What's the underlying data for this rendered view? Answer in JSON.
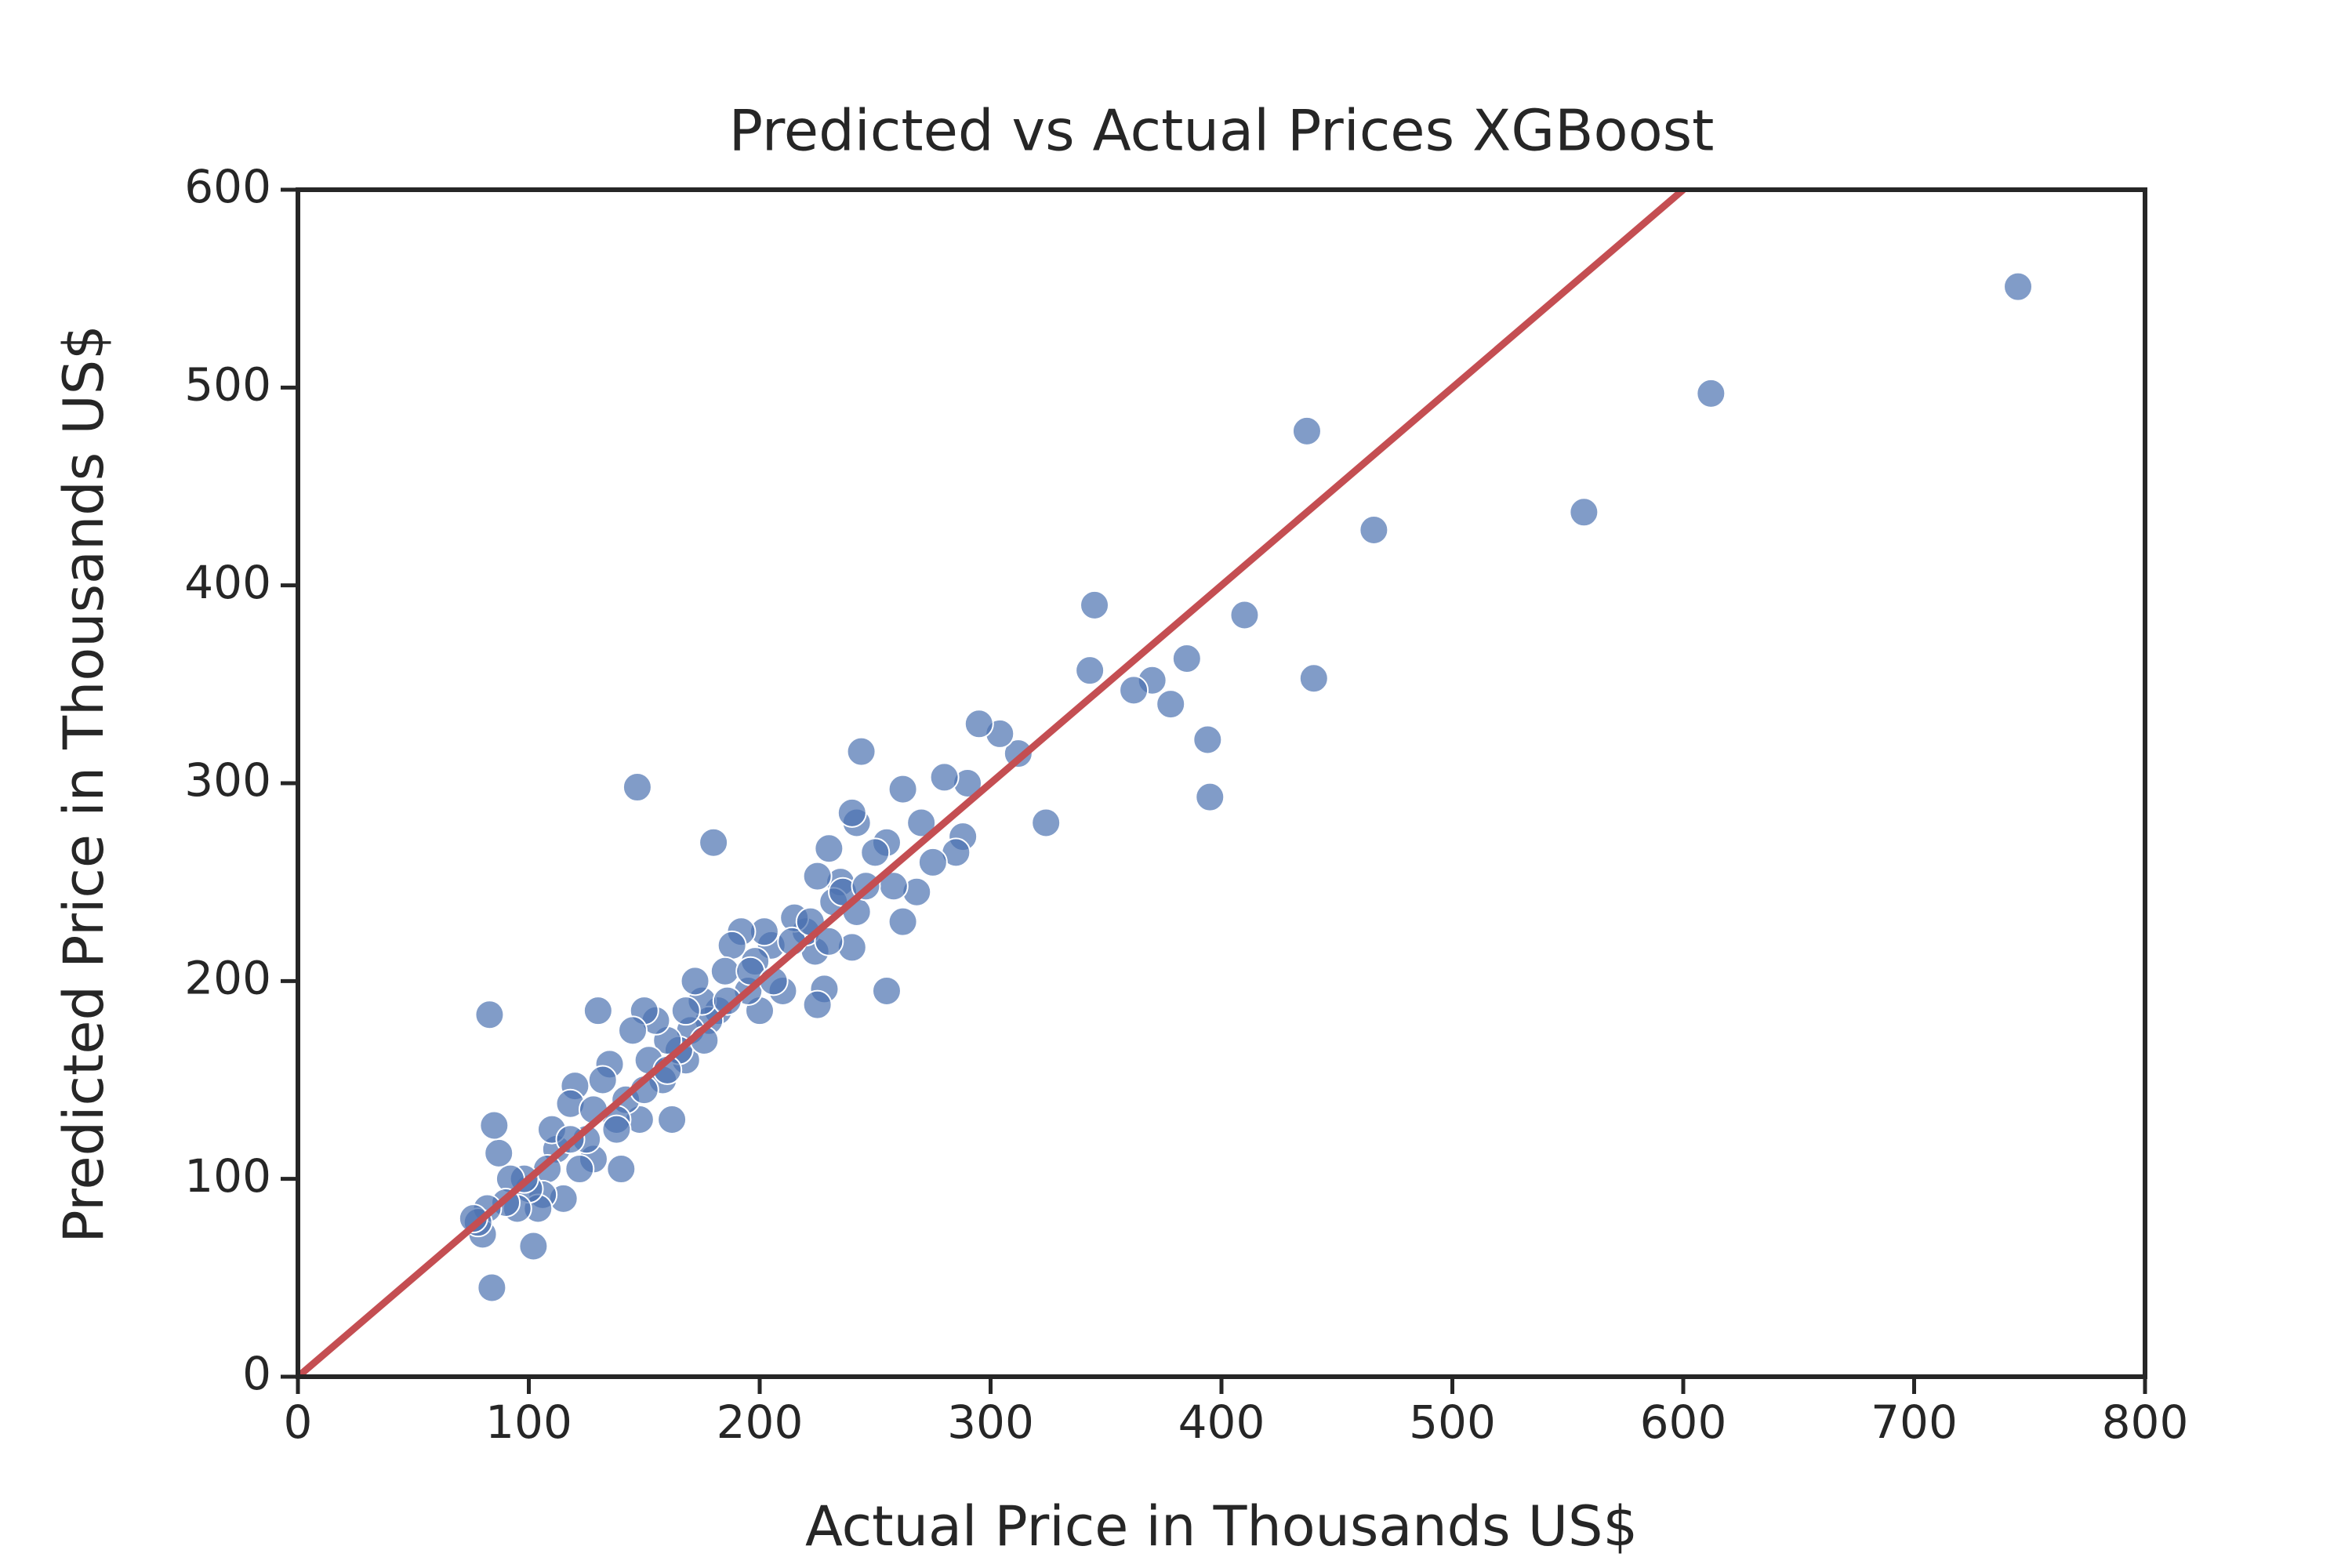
{
  "chart_data": {
    "type": "scatter",
    "title": "Predicted vs Actual Prices XGBoost",
    "x_label": "Actual Price in Thousands US$",
    "y_label": "Predicted Price in Thousands US$",
    "xlim": [
      0,
      800
    ],
    "ylim": [
      0,
      600
    ],
    "xticks": [
      0,
      100,
      200,
      300,
      400,
      500,
      600,
      700,
      800
    ],
    "yticks": [
      0,
      100,
      200,
      300,
      400,
      500,
      600
    ],
    "grid": false,
    "series": [
      {
        "color": "#4c72b0",
        "x": [
          745,
          612,
          557,
          466,
          437,
          440,
          410,
          394,
          395,
          385,
          378,
          370,
          362,
          345,
          343,
          324,
          312,
          304,
          295,
          290,
          288,
          285,
          280,
          275,
          270,
          268,
          262,
          262,
          258,
          255,
          255,
          250,
          244,
          242,
          240,
          242,
          240,
          235,
          232,
          230,
          228,
          225,
          225,
          224,
          220,
          215,
          210,
          205,
          202,
          200,
          198,
          195,
          192,
          188,
          185,
          182,
          180,
          178,
          175,
          172,
          170,
          168,
          165,
          162,
          160,
          158,
          155,
          152,
          150,
          148,
          147,
          145,
          142,
          140,
          138,
          135,
          132,
          130,
          128,
          125,
          122,
          120,
          118,
          115,
          112,
          110,
          108,
          106,
          104,
          102,
          100,
          98,
          95,
          92,
          90,
          87,
          85,
          84,
          83,
          82,
          80,
          78,
          76,
          118,
          128,
          138,
          150,
          160,
          168,
          176,
          186,
          196,
          206,
          214,
          222,
          230,
          236,
          246
        ],
        "values": [
          551,
          497,
          437,
          428,
          478,
          353,
          385,
          322,
          293,
          363,
          340,
          352,
          347,
          390,
          357,
          280,
          315,
          325,
          330,
          300,
          273,
          265,
          303,
          260,
          280,
          245,
          297,
          230,
          248,
          195,
          270,
          265,
          316,
          280,
          285,
          235,
          217,
          250,
          240,
          267,
          196,
          253,
          188,
          215,
          225,
          232,
          195,
          218,
          225,
          185,
          210,
          195,
          225,
          218,
          205,
          185,
          270,
          180,
          190,
          200,
          175,
          160,
          165,
          130,
          170,
          150,
          180,
          160,
          185,
          130,
          298,
          175,
          140,
          105,
          130,
          158,
          150,
          185,
          110,
          120,
          105,
          147,
          138,
          90,
          115,
          125,
          105,
          92,
          85,
          66,
          95,
          100,
          85,
          100,
          88,
          113,
          127,
          45,
          183,
          85,
          72,
          78,
          80,
          120,
          135,
          125,
          145,
          155,
          185,
          170,
          190,
          205,
          200,
          220,
          230,
          220,
          245,
          248
        ]
      }
    ],
    "reference_line": {
      "color": "#c44e52",
      "x": [
        0,
        600
      ],
      "y": [
        0,
        600
      ]
    }
  }
}
